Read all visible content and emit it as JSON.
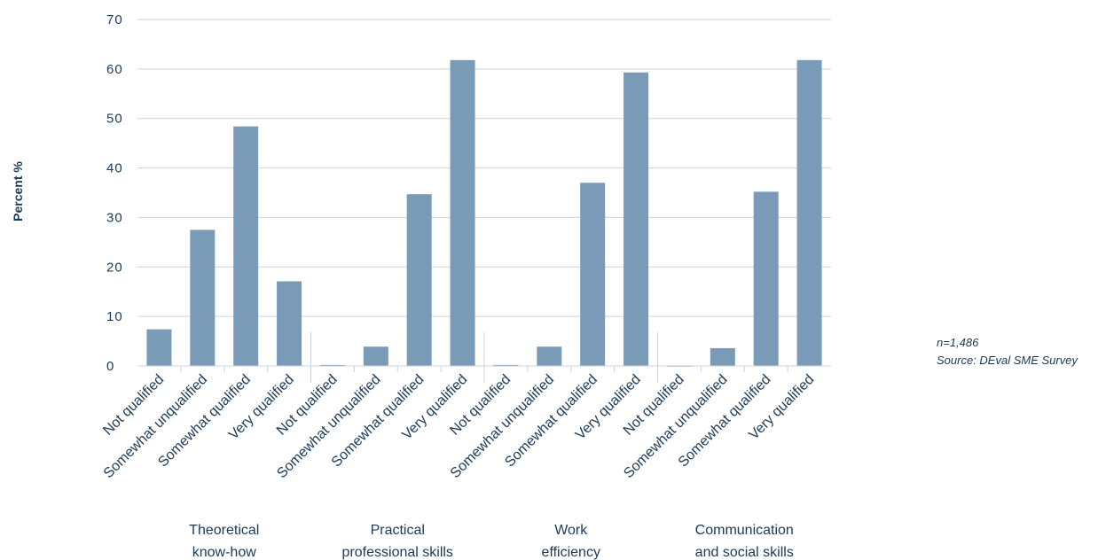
{
  "chart_data": {
    "type": "bar",
    "ylabel": "Percent %",
    "ylim": [
      0,
      70
    ],
    "yticks": [
      "0",
      "10",
      "20",
      "30",
      "40",
      "50",
      "60",
      "70"
    ],
    "grid": true,
    "bar_color": "#7a9bb7",
    "groups": [
      {
        "label_lines": [
          "Theoretical",
          "know-how"
        ],
        "categories": [
          "Not qualified",
          "Somewhat unqualified",
          "Somewhat qualified",
          "Very qualified"
        ],
        "values": [
          7.4,
          27.5,
          48.4,
          17.1
        ]
      },
      {
        "label_lines": [
          "Practical",
          "professional skills"
        ],
        "categories": [
          "Not qualified",
          "Somewhat unqualified",
          "Somewhat qualified",
          "Very qualified"
        ],
        "values": [
          0.2,
          3.9,
          34.7,
          61.8
        ]
      },
      {
        "label_lines": [
          "Work",
          "efficiency"
        ],
        "categories": [
          "Not qualified",
          "Somewhat unqualified",
          "Somewhat qualified",
          "Very qualified"
        ],
        "values": [
          0.2,
          3.9,
          37.0,
          59.3
        ]
      },
      {
        "label_lines": [
          "Communication",
          "and social skills"
        ],
        "categories": [
          "Not qualified",
          "Somewhat unqualified",
          "Somewhat qualified",
          "Very qualified"
        ],
        "values": [
          0.0,
          3.6,
          35.2,
          61.8
        ]
      }
    ],
    "notes": [
      "n=1,486",
      "Source: DEval SME Survey"
    ]
  }
}
